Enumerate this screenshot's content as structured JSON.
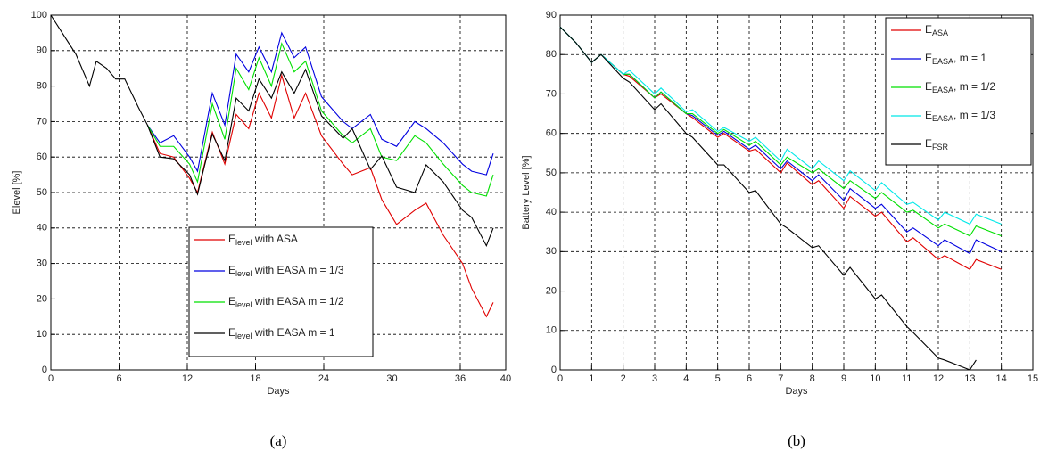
{
  "chart_data": [
    {
      "type": "line",
      "caption": "(a)",
      "xlabel": "Days",
      "ylabel": "Elevel [%]",
      "xlim": [
        0,
        40
      ],
      "xticks": [
        0,
        6,
        12,
        18,
        24,
        30,
        36,
        40
      ],
      "ylim": [
        0,
        100
      ],
      "yticks": [
        0,
        10,
        20,
        30,
        40,
        50,
        60,
        70,
        80,
        90,
        100
      ],
      "grid": true,
      "legend": "lower center",
      "x": [
        0,
        1,
        2.2,
        3.4,
        4,
        4.9,
        5.7,
        6.5,
        7.7,
        8.5,
        9.6,
        10.8,
        12.2,
        12.9,
        14.2,
        15.3,
        16.3,
        17.4,
        18.3,
        19.4,
        20.3,
        21.4,
        22.4,
        23.8,
        25.7,
        26.5,
        28.1,
        29.1,
        30.4,
        32,
        33,
        34.5,
        36.2,
        37,
        38.3,
        38.9
      ],
      "series": [
        {
          "name": "Elevel with ASA",
          "sub": "level",
          "color": "#e00000",
          "values": [
            null,
            null,
            null,
            null,
            null,
            null,
            null,
            null,
            null,
            69,
            61,
            60,
            54,
            50,
            67,
            58,
            72,
            68,
            78,
            71,
            83,
            71,
            78,
            66,
            58,
            55,
            57,
            48,
            41,
            45,
            47,
            38,
            30,
            23,
            15,
            19
          ]
        },
        {
          "name": "Elevel with EASA m = 1/3",
          "sub": "level",
          "color": "#0000e0",
          "values": [
            null,
            null,
            null,
            null,
            null,
            null,
            null,
            null,
            null,
            69,
            64,
            66,
            60,
            56,
            78,
            69,
            89,
            84,
            91,
            84,
            95,
            88,
            91,
            77,
            70,
            68,
            72,
            65,
            63,
            70,
            68,
            64,
            58,
            56,
            55,
            61
          ]
        },
        {
          "name": "Elevel with EASA m = 1/2",
          "sub": "level",
          "color": "#00e000",
          "values": [
            null,
            null,
            null,
            null,
            null,
            null,
            null,
            null,
            null,
            69,
            63,
            63,
            58,
            53,
            75,
            65,
            85,
            79,
            88,
            80,
            92,
            84,
            87,
            73,
            66,
            64,
            68,
            60,
            59,
            66,
            64,
            58,
            52,
            50,
            49,
            55
          ]
        },
        {
          "name": "Elevel with EASA m = 1",
          "sub": "level",
          "color": "#000000",
          "values": [
            100,
            95,
            89,
            80,
            87,
            85,
            82,
            82,
            74,
            69,
            60,
            59.5,
            55,
            49.5,
            66.5,
            59,
            76.6,
            73,
            82,
            76.6,
            84,
            78,
            84.7,
            71.6,
            65.3,
            68,
            56.5,
            60.3,
            51.5,
            50,
            57.8,
            53,
            45,
            43,
            35,
            40
          ]
        }
      ]
    },
    {
      "type": "line",
      "caption": "(b)",
      "xlabel": "Days",
      "ylabel": "Battery Level [%]",
      "xlim": [
        0,
        15
      ],
      "xticks": [
        0,
        1,
        2,
        3,
        4,
        5,
        6,
        7,
        8,
        9,
        10,
        11,
        12,
        13,
        14,
        15
      ],
      "ylim": [
        0,
        90
      ],
      "yticks": [
        0,
        10,
        20,
        30,
        40,
        50,
        60,
        70,
        80,
        90
      ],
      "grid": true,
      "legend": "upper right",
      "x": [
        0,
        0.5,
        1,
        1.3,
        2,
        2.2,
        3,
        3.2,
        4,
        4.2,
        5,
        5.2,
        6,
        6.2,
        7,
        7.2,
        8,
        8.2,
        9,
        9.2,
        10,
        10.2,
        11,
        11.2,
        12,
        12.2,
        13,
        13.2,
        14
      ],
      "series": [
        {
          "name": "EASA",
          "sub": "ASA",
          "color": "#e00000",
          "values": [
            87,
            83,
            78,
            80,
            75,
            74.5,
            69,
            70,
            65,
            64,
            59,
            60,
            55.5,
            56,
            50,
            52.5,
            47,
            48,
            41,
            44,
            39,
            40,
            32.5,
            33.5,
            28,
            29,
            25.5,
            28,
            25.5
          ]
        },
        {
          "name": "EEASA, m = 1",
          "sub": "EASA",
          "color": "#0000e0",
          "values": [
            87,
            83,
            78,
            80,
            75,
            75,
            69,
            70.5,
            65,
            64.5,
            59.5,
            60.5,
            56,
            57,
            51,
            53,
            48,
            49.5,
            43,
            46,
            41,
            42,
            35,
            36,
            31.5,
            33,
            29.5,
            33,
            30
          ]
        },
        {
          "name": "EEASA, m = 1/2",
          "sub": "EASA",
          "color": "#00e000",
          "values": [
            87,
            83,
            78,
            80,
            75,
            75,
            69,
            70.5,
            65,
            65,
            60,
            61,
            57,
            58,
            52,
            54,
            50,
            51,
            46,
            48,
            43.5,
            45,
            40,
            40.5,
            36,
            37,
            34,
            36.5,
            34
          ]
        },
        {
          "name": "EEASA, m = 1/3",
          "sub": "EASA",
          "color": "#00e8e8",
          "values": [
            87,
            83,
            78,
            80,
            75,
            76,
            70,
            71.5,
            65.5,
            66,
            60.5,
            61.5,
            58,
            59,
            53,
            56,
            51,
            53,
            48,
            50.5,
            45.5,
            47.5,
            42,
            42.5,
            38,
            40,
            37,
            39.5,
            37
          ]
        },
        {
          "name": "EFSR",
          "sub": "FSR",
          "color": "#000000",
          "values": [
            87,
            83,
            78,
            80,
            74,
            73,
            66,
            67.5,
            60,
            59,
            52,
            52,
            45,
            45.5,
            37,
            36,
            31,
            31.5,
            24,
            26,
            18,
            19,
            11,
            9.5,
            3,
            2.5,
            0,
            2.5,
            null
          ]
        }
      ]
    }
  ]
}
